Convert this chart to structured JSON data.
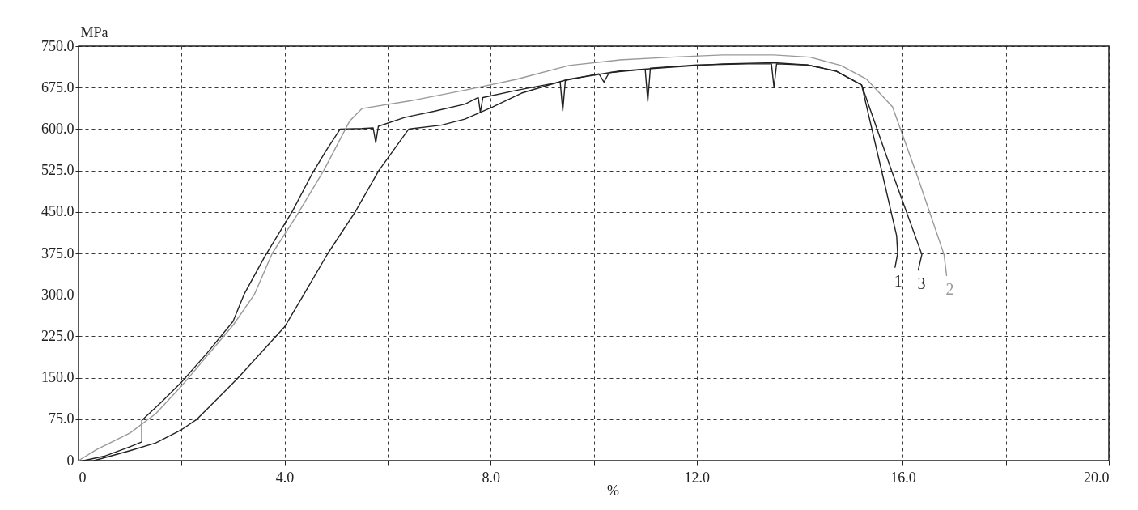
{
  "chart_data": {
    "type": "line",
    "xlabel": "%",
    "ylabel": "MPa",
    "xlim": [
      0,
      20
    ],
    "ylim": [
      0,
      750
    ],
    "xticks": [
      0,
      {
        "value": 2,
        "label": null
      },
      {
        "value": 4,
        "label": "4.0"
      },
      {
        "value": 6,
        "label": null
      },
      {
        "value": 8,
        "label": "8.0"
      },
      {
        "value": 10,
        "label": null
      },
      {
        "value": 12,
        "label": "12.0"
      },
      {
        "value": 14,
        "label": null
      },
      {
        "value": 16,
        "label": "16.0"
      },
      {
        "value": 18,
        "label": null
      },
      {
        "value": 20,
        "label": "20.0"
      }
    ],
    "yticks": [
      0,
      {
        "value": 75,
        "label": "75.0"
      },
      {
        "value": 150,
        "label": "150.0"
      },
      {
        "value": 225,
        "label": "225.0"
      },
      {
        "value": 300,
        "label": "300.0"
      },
      {
        "value": 375,
        "label": "375.0"
      },
      {
        "value": 450,
        "label": "450.0"
      },
      {
        "value": 525,
        "label": "525.0"
      },
      {
        "value": 600,
        "label": "600.0"
      },
      {
        "value": 675,
        "label": "675.0"
      },
      {
        "value": 750,
        "label": "750.0"
      }
    ],
    "grid": true,
    "marker": "none",
    "line_style": "solid",
    "series": [
      {
        "name": "1",
        "color": "#222222",
        "x": [
          0.1,
          0.5,
          1.0,
          1.23,
          1.23,
          1.6,
          2.0,
          2.5,
          3.0,
          3.22,
          3.62,
          4.15,
          4.54,
          4.8,
          5.08,
          5.5,
          5.72,
          5.77,
          5.82,
          6.33,
          6.9,
          7.5,
          7.76,
          7.8,
          7.85,
          8.5,
          9.35,
          9.4,
          9.45,
          10.1,
          10.2,
          10.3,
          11.0,
          11.05,
          11.1,
          12.0,
          13.0,
          13.45,
          13.5,
          13.55,
          14.15,
          14.7,
          15.2,
          15.6,
          15.88,
          15.9,
          15.85
        ],
        "values": [
          0,
          8,
          25,
          34,
          73,
          105,
          142,
          195,
          252,
          302,
          370,
          451,
          520,
          560,
          600,
          601,
          602,
          575,
          605,
          621,
          632,
          645,
          657,
          630,
          657,
          670,
          685,
          633,
          688,
          700,
          685,
          702,
          708,
          650,
          710,
          716,
          718,
          718,
          675,
          718,
          716,
          705,
          680,
          520,
          407,
          375,
          350
        ]
      },
      {
        "name": "2",
        "color": "#999999",
        "x": [
          0.0,
          0.35,
          1.0,
          1.5,
          2.0,
          2.5,
          3.0,
          3.41,
          3.76,
          4.22,
          4.76,
          5.26,
          5.5,
          6.5,
          7.54,
          8.5,
          9.52,
          10.5,
          11.5,
          12.5,
          13.5,
          14.2,
          14.8,
          15.3,
          15.8,
          16.3,
          16.8,
          16.85
        ],
        "values": [
          0,
          20,
          50,
          85,
          135,
          190,
          245,
          300,
          375,
          441,
          525,
          614,
          637,
          652,
          671,
          690,
          715,
          725,
          730,
          734,
          734,
          730,
          715,
          690,
          640,
          510,
          373,
          335
        ]
      },
      {
        "name": "3",
        "color": "#222222",
        "x": [
          0.3,
          1.0,
          1.5,
          2.0,
          2.3,
          3.08,
          4.0,
          4.37,
          4.84,
          5.37,
          5.83,
          6.41,
          7.04,
          7.5,
          8.04,
          8.6,
          9.5,
          10.5,
          11.5,
          12.5,
          13.5,
          14.15,
          14.7,
          15.2,
          15.8,
          16.37,
          16.3
        ],
        "values": [
          0,
          18,
          32,
          56,
          75,
          148,
          242,
          300,
          375,
          450,
          525,
          600,
          607,
          618,
          640,
          665,
          690,
          705,
          712,
          718,
          720,
          716,
          705,
          680,
          520,
          373,
          345
        ]
      }
    ]
  }
}
